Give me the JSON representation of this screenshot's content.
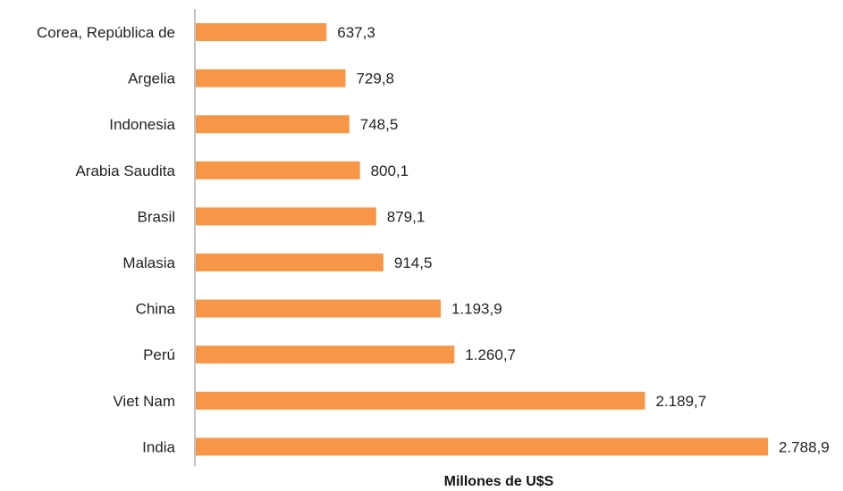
{
  "chart_data": {
    "type": "bar",
    "orientation": "horizontal",
    "categories": [
      "Corea, República de",
      "Argelia",
      "Indonesia",
      "Arabia Saudita",
      "Brasil",
      "Malasia",
      "China",
      "Perú",
      "Viet Nam",
      "India"
    ],
    "values": [
      637.3,
      729.8,
      748.5,
      800.1,
      879.1,
      914.5,
      1193.9,
      1260.7,
      2189.7,
      2788.9
    ],
    "value_labels": [
      "637,3",
      "729,8",
      "748,5",
      "800,1",
      "879,1",
      "914,5",
      "1.193,9",
      "1.260,7",
      "2.189,7",
      "2.788,9"
    ],
    "xlabel": "Millones de U$S",
    "ylabel": "",
    "title": "",
    "xlim": [
      0,
      2800
    ],
    "grid": false,
    "legend": "none",
    "bar_color": "#f79646",
    "axis_color": "#9a9a9a"
  }
}
